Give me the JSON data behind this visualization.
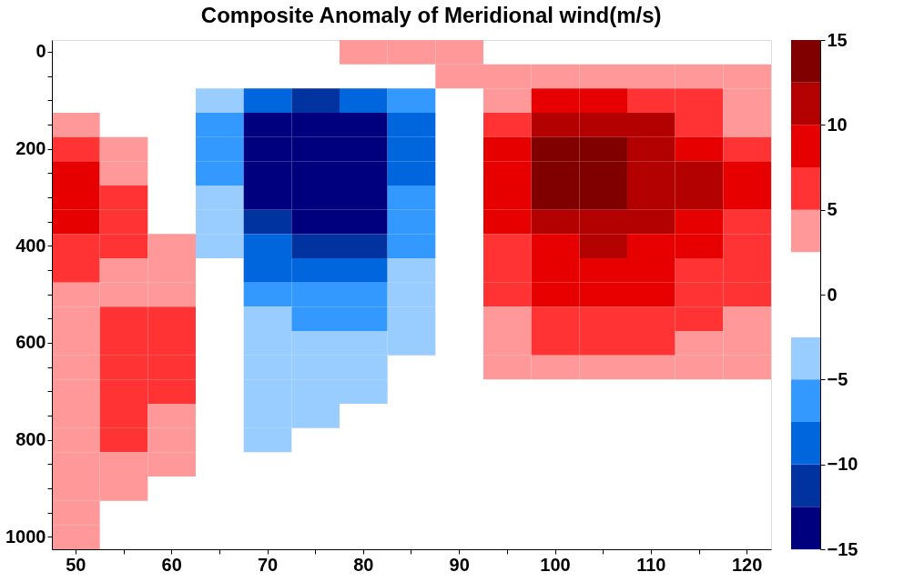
{
  "chart_data": {
    "type": "heatmap",
    "title": "Composite Anomaly of Meridional wind(m/s)",
    "categories": [
      "50",
      null,
      "60",
      null,
      "70",
      null,
      "80",
      null,
      "90",
      null,
      "100",
      null,
      "110",
      null,
      "120"
    ],
    "y_categories": [
      "0",
      null,
      null,
      null,
      "200",
      null,
      null,
      null,
      "400",
      null,
      null,
      null,
      "600",
      null,
      null,
      null,
      "800",
      null,
      null,
      null,
      "1000"
    ],
    "cells": [
      [
        null,
        null,
        null,
        null,
        null,
        null,
        3.75,
        3.75,
        3.75,
        null,
        null,
        null,
        null,
        null,
        null
      ],
      [
        null,
        null,
        null,
        null,
        null,
        null,
        null,
        null,
        3.75,
        3.75,
        3.75,
        3.75,
        3.75,
        3.75,
        3.75
      ],
      [
        null,
        null,
        null,
        -3.75,
        -8.75,
        -11.25,
        -8.75,
        -6.25,
        null,
        3.75,
        8.75,
        8.75,
        6.25,
        6.25,
        3.75
      ],
      [
        3.75,
        null,
        null,
        -6.25,
        -13.75,
        -13.75,
        -13.75,
        -8.75,
        null,
        6.25,
        11.25,
        11.25,
        11.25,
        6.25,
        3.75
      ],
      [
        6.25,
        3.75,
        null,
        -6.25,
        -13.75,
        -13.75,
        -13.75,
        -8.75,
        null,
        8.75,
        13.75,
        13.75,
        11.25,
        8.75,
        6.25
      ],
      [
        8.75,
        3.75,
        null,
        -6.25,
        -13.75,
        -13.75,
        -13.75,
        -8.75,
        null,
        8.75,
        13.75,
        13.75,
        11.25,
        11.25,
        8.75
      ],
      [
        8.75,
        6.25,
        null,
        -3.75,
        -13.75,
        -13.75,
        -13.75,
        -6.25,
        null,
        8.75,
        13.75,
        13.75,
        11.25,
        11.25,
        8.75
      ],
      [
        8.75,
        6.25,
        null,
        -3.75,
        -11.25,
        -13.75,
        -13.75,
        -6.25,
        null,
        8.75,
        11.25,
        11.25,
        11.25,
        8.75,
        6.25
      ],
      [
        6.25,
        6.25,
        3.75,
        -3.75,
        -8.75,
        -11.25,
        -11.25,
        -6.25,
        null,
        6.25,
        8.75,
        11.25,
        8.75,
        8.75,
        6.25
      ],
      [
        6.25,
        3.75,
        3.75,
        null,
        -8.75,
        -8.75,
        -8.75,
        -3.75,
        null,
        6.25,
        8.75,
        8.75,
        8.75,
        6.25,
        6.25
      ],
      [
        3.75,
        3.75,
        3.75,
        null,
        -6.25,
        -6.25,
        -6.25,
        -3.75,
        null,
        6.25,
        8.75,
        8.75,
        8.75,
        6.25,
        6.25
      ],
      [
        3.75,
        6.25,
        6.25,
        null,
        -3.75,
        -6.25,
        -6.25,
        -3.75,
        null,
        3.75,
        6.25,
        6.25,
        6.25,
        6.25,
        3.75
      ],
      [
        3.75,
        6.25,
        6.25,
        null,
        -3.75,
        -3.75,
        -3.75,
        -3.75,
        null,
        3.75,
        6.25,
        6.25,
        6.25,
        3.75,
        3.75
      ],
      [
        3.75,
        6.25,
        6.25,
        null,
        -3.75,
        -3.75,
        -3.75,
        null,
        null,
        3.75,
        3.75,
        3.75,
        3.75,
        3.75,
        3.75
      ],
      [
        3.75,
        6.25,
        6.25,
        null,
        -3.75,
        -3.75,
        -3.75,
        null,
        null,
        null,
        null,
        null,
        null,
        null,
        null
      ],
      [
        3.75,
        6.25,
        3.75,
        null,
        -3.75,
        -3.75,
        null,
        null,
        null,
        null,
        null,
        null,
        null,
        null,
        null
      ],
      [
        3.75,
        6.25,
        3.75,
        null,
        -3.75,
        null,
        null,
        null,
        null,
        null,
        null,
        null,
        null,
        null,
        null
      ],
      [
        3.75,
        3.75,
        3.75,
        null,
        null,
        null,
        null,
        null,
        null,
        null,
        null,
        null,
        null,
        null,
        null
      ],
      [
        3.75,
        3.75,
        null,
        null,
        null,
        null,
        null,
        null,
        null,
        null,
        null,
        null,
        null,
        null,
        null
      ],
      [
        3.75,
        null,
        null,
        null,
        null,
        null,
        null,
        null,
        null,
        null,
        null,
        null,
        null,
        null,
        null
      ],
      [
        3.75,
        null,
        null,
        null,
        null,
        null,
        null,
        null,
        null,
        null,
        null,
        null,
        null,
        null,
        null
      ]
    ],
    "colors": [
      "#00007f",
      "#0033a0",
      "#0066dd",
      "#3399ff",
      "#99ccff",
      "#ffffff",
      "#ffffff",
      "#ff9999",
      "#ff3333",
      "#e60000",
      "#b30000",
      "#800000"
    ],
    "clim": [
      -15,
      15
    ],
    "cticks": [
      -15,
      -10,
      -5,
      0,
      5,
      10,
      15
    ]
  }
}
